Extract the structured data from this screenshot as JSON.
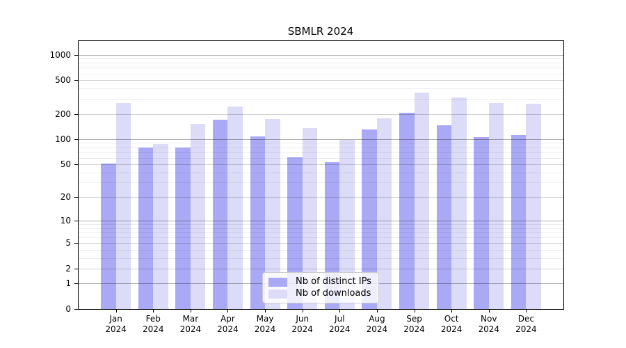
{
  "chart_data": {
    "type": "bar",
    "title": "SBMLR 2024",
    "categories": [
      "Jan 2024",
      "Feb 2024",
      "Mar 2024",
      "Apr 2024",
      "May 2024",
      "Jun 2024",
      "Jul 2024",
      "Aug 2024",
      "Sep 2024",
      "Oct 2024",
      "Nov 2024",
      "Dec 2024"
    ],
    "series": [
      {
        "name": "Nb of distinct IPs",
        "color": "#a9a9f6",
        "values": [
          51,
          79,
          79,
          170,
          107,
          61,
          53,
          130,
          206,
          146,
          106,
          112
        ]
      },
      {
        "name": "Nb of downloads",
        "color": "#dcdcf9",
        "values": [
          270,
          88,
          151,
          245,
          173,
          135,
          98,
          176,
          358,
          315,
          271,
          266
        ]
      }
    ],
    "xlabel": "",
    "ylabel": "",
    "y_scale": "log1p",
    "y_axis_max": 1450,
    "y_tick_values": [
      0,
      1,
      2,
      5,
      10,
      20,
      50,
      100,
      200,
      500,
      1000
    ],
    "y_tick_labels": [
      "0",
      "1",
      "2",
      "5",
      "10",
      "20",
      "50",
      "100",
      "200",
      "500",
      "1000"
    ],
    "minor_gridline_values": [
      3,
      4,
      6,
      7,
      8,
      9,
      30,
      40,
      60,
      70,
      80,
      90,
      300,
      400,
      600,
      700,
      800,
      900
    ],
    "grid": true,
    "legend_position": "lower center",
    "background_color": "#ffffff",
    "axis_color": "#000000"
  }
}
